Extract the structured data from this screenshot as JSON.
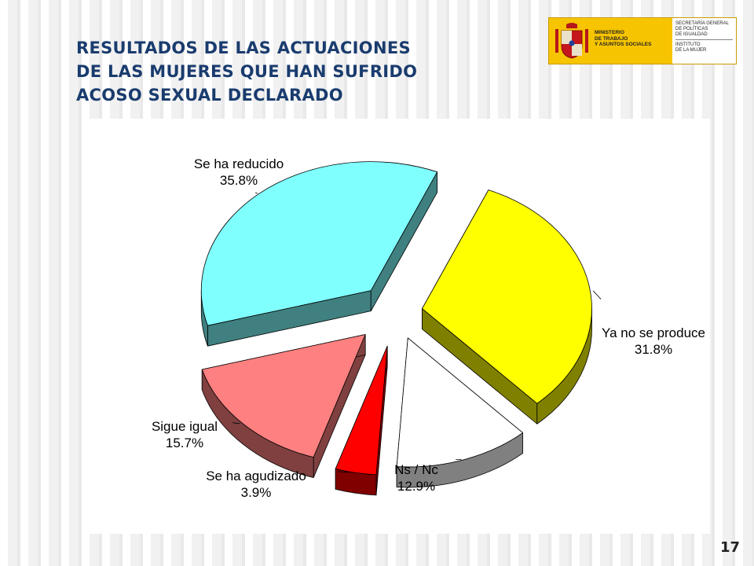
{
  "slide": {
    "title": "RESULTADOS DE LAS ACTUACIONES\nDE LAS MUJERES QUE HAN SUFRIDO\nACOSO SEXUAL DECLARADO",
    "page_number": "17"
  },
  "logo": {
    "ministerio": "MINISTERIO\nDE TRABAJO\nY ASUNTOS SOCIALES",
    "secretaria": "SECRETARÍA GENERAL\nDE POLÍTICAS\nDE IGUALDAD",
    "instituto": "INSTITUTO\nDE LA MUJER"
  },
  "chart_data": {
    "type": "pie",
    "style": "3d-exploded",
    "slices": [
      {
        "label": "Ya no se produce",
        "value": 31.8,
        "value_label": "31.8%",
        "color": "#ffff00",
        "side_color": "#808000"
      },
      {
        "label": "Ns / Nc",
        "value": 12.9,
        "value_label": "12.9%",
        "color": "#ffffff",
        "side_color": "#808080"
      },
      {
        "label": "Se ha agudizado",
        "value": 3.9,
        "value_label": "3.9%",
        "color": "#ff0000",
        "side_color": "#800000"
      },
      {
        "label": "Sigue igual",
        "value": 15.7,
        "value_label": "15.7%",
        "color": "#ff8080",
        "side_color": "#804040"
      },
      {
        "label": "Se ha reducido",
        "value": 35.8,
        "value_label": "35.8%",
        "color": "#80ffff",
        "side_color": "#408080"
      }
    ]
  }
}
